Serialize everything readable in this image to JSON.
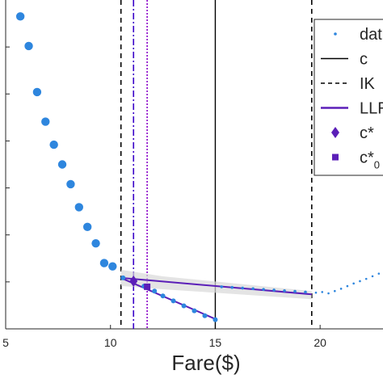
{
  "chart_data": {
    "type": "scatter",
    "xlabel": "Fare($)",
    "ylabel": "",
    "xlim": [
      5,
      23
    ],
    "x_ticks": [
      5,
      10,
      15,
      20
    ],
    "y_ticks_count": 6,
    "series": [
      {
        "name": "dat",
        "kind": "points-large",
        "color": "#2e86de",
        "x": [
          5.7,
          6.1,
          6.5,
          6.9,
          7.3,
          7.7,
          8.1,
          8.5,
          8.9,
          9.3,
          9.7,
          10.1
        ],
        "y": [
          0.95,
          0.86,
          0.72,
          0.63,
          0.56,
          0.5,
          0.44,
          0.37,
          0.31,
          0.26,
          0.2,
          0.19
        ]
      },
      {
        "name": "dat",
        "kind": "points-medium",
        "color": "#2e86de",
        "x": [
          10.6,
          11.1,
          11.6,
          12.1,
          12.5,
          13.0,
          13.5,
          14.0,
          14.5,
          15.0
        ],
        "y": [
          0.155,
          0.145,
          0.13,
          0.115,
          0.1,
          0.085,
          0.07,
          0.055,
          0.04,
          0.028
        ]
      },
      {
        "name": "dat",
        "kind": "points-small",
        "color": "#2e86de",
        "x": [
          15.3,
          15.8,
          16.3,
          16.8,
          17.3,
          17.8,
          18.3,
          18.8,
          19.3
        ],
        "y": [
          0.128,
          0.126,
          0.124,
          0.122,
          0.12,
          0.118,
          0.116,
          0.114,
          0.112
        ]
      },
      {
        "name": "dat",
        "kind": "points-tiny",
        "color": "#2e86de",
        "x": [
          19.8,
          20.1,
          20.4,
          20.7,
          21.0,
          21.3,
          21.6,
          21.9,
          22.2,
          22.5,
          22.8
        ],
        "y": [
          0.11,
          0.112,
          0.108,
          0.115,
          0.122,
          0.13,
          0.138,
          0.145,
          0.152,
          0.16,
          0.168
        ]
      }
    ],
    "lines": [
      {
        "name": "c",
        "style": "solid",
        "color": "#000000",
        "x": 15.0
      },
      {
        "name": "IK",
        "style": "dashed",
        "color": "#000000",
        "x": 10.5
      },
      {
        "name": "IK",
        "style": "dashed",
        "color": "#000000",
        "x": 19.6
      },
      {
        "name": "c*",
        "style": "dashdot",
        "color": "#3a00c8",
        "x": 11.1
      },
      {
        "name": "c*0",
        "style": "dotted",
        "color": "#8a00c8",
        "x": 11.75
      }
    ],
    "llr_fits": [
      {
        "x": [
          10.5,
          15.0
        ],
        "y": [
          0.155,
          0.03
        ],
        "color": "#5b1fb8"
      },
      {
        "x": [
          10.5,
          19.6
        ],
        "y": [
          0.155,
          0.105
        ],
        "color": "#5b1fb8"
      }
    ],
    "markers": [
      {
        "name": "c*",
        "shape": "diamond",
        "x": 11.1,
        "y": 0.145,
        "color": "#5b1fb8"
      },
      {
        "name": "c*0",
        "shape": "square",
        "x": 11.75,
        "y": 0.128,
        "color": "#5b1fb8"
      }
    ],
    "legend": {
      "placement": "top-right",
      "entries": [
        {
          "label": "dat",
          "marker": "dot"
        },
        {
          "label": "c",
          "marker": "solid"
        },
        {
          "label": "IK",
          "marker": "dashed"
        },
        {
          "label": "LLR",
          "marker": "llr"
        },
        {
          "label": "c*",
          "marker": "diamond"
        },
        {
          "label": "c*",
          "subscript": "0",
          "marker": "square"
        }
      ]
    }
  }
}
